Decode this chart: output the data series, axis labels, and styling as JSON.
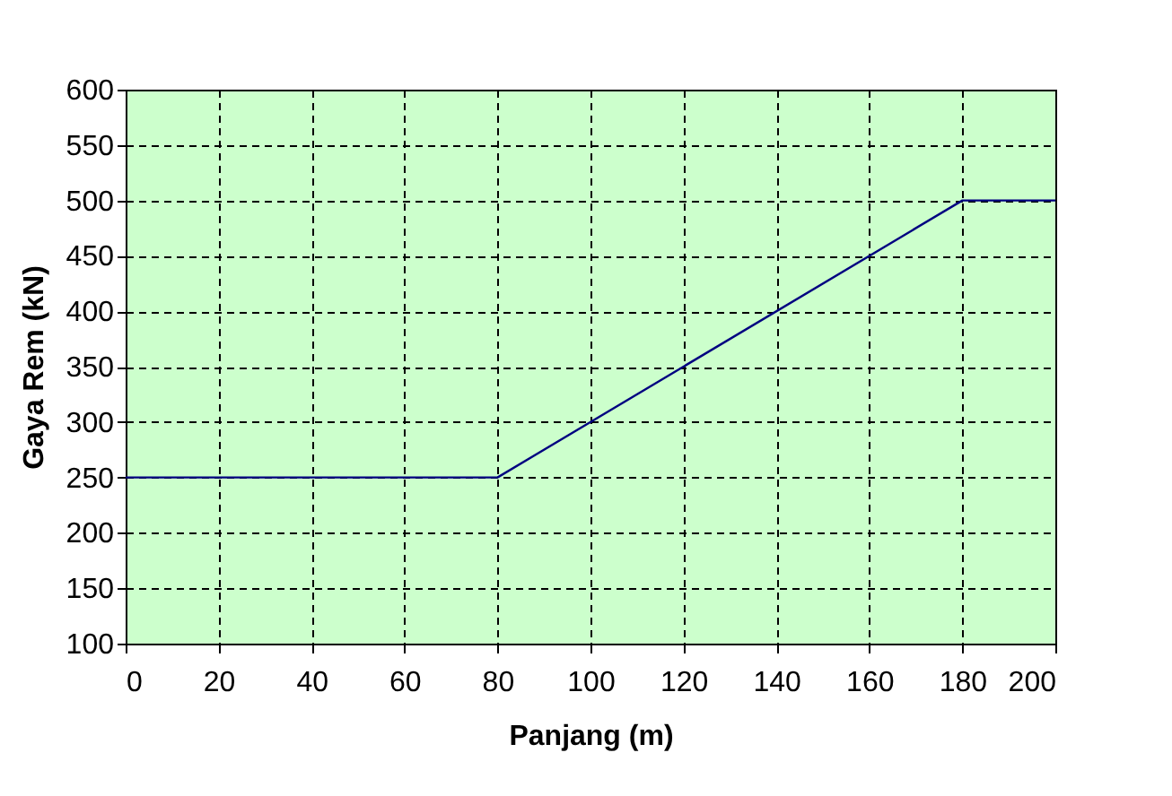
{
  "chart_data": {
    "type": "line",
    "xlabel": "Panjang (m)",
    "ylabel": "Gaya Rem (kN)",
    "x": [
      0,
      80,
      180,
      200
    ],
    "series": [
      {
        "color": "#000080",
        "values": [
          250,
          250,
          500,
          500
        ]
      }
    ],
    "xlim": [
      0,
      200
    ],
    "xticks": [
      0,
      20,
      40,
      60,
      80,
      100,
      120,
      140,
      160,
      180,
      200
    ],
    "ylim": [
      100,
      600
    ],
    "yticks": [
      100,
      150,
      200,
      250,
      300,
      350,
      400,
      450,
      500,
      550,
      600
    ],
    "grid": true,
    "marker": "none",
    "line_style": "solid"
  }
}
